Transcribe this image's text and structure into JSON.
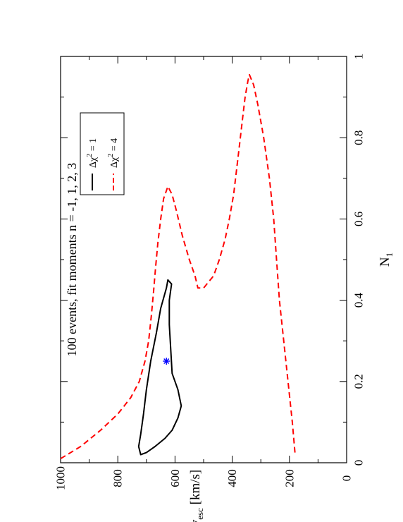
{
  "chart_data": {
    "type": "line",
    "orientation": "rotated 90 degrees counter-clockwise",
    "title": "100 events, fit moments n = -1, 1, 2, 3",
    "xlabel": "N",
    "xlabel_sub": "1",
    "ylabel": "v",
    "ylabel_sub": "esc",
    "ylabel_unit": "[km/s]",
    "xlim": [
      0,
      1
    ],
    "ylim": [
      0,
      1000
    ],
    "x_ticks": [
      "0",
      "0.2",
      "0.4",
      "0.6",
      "0.8",
      "1"
    ],
    "y_ticks": [
      "0",
      "200",
      "400",
      "600",
      "800",
      "1000"
    ],
    "grid": false,
    "legend_position": "top-right",
    "legend": [
      {
        "label": "Δχ",
        "sup": "2",
        "suffix": " = 1",
        "style": "solid",
        "color": "#000000"
      },
      {
        "label": "Δχ",
        "sup": "2",
        "suffix": " = 4",
        "style": "dashed",
        "color": "#ff0000"
      }
    ],
    "best_fit": {
      "x": 0.25,
      "y": 630,
      "marker": "*",
      "color": "#0000ff"
    },
    "series": [
      {
        "style": "solid",
        "color": "#000000",
        "closed": true,
        "points": [
          [
            0.45,
            625
          ],
          [
            0.43,
            630
          ],
          [
            0.38,
            650
          ],
          [
            0.32,
            665
          ],
          [
            0.25,
            685
          ],
          [
            0.18,
            700
          ],
          [
            0.12,
            710
          ],
          [
            0.07,
            720
          ],
          [
            0.04,
            727
          ],
          [
            0.02,
            720
          ],
          [
            0.025,
            700
          ],
          [
            0.04,
            670
          ],
          [
            0.06,
            635
          ],
          [
            0.08,
            610
          ],
          [
            0.11,
            590
          ],
          [
            0.14,
            578
          ],
          [
            0.18,
            590
          ],
          [
            0.22,
            610
          ],
          [
            0.28,
            615
          ],
          [
            0.34,
            620
          ],
          [
            0.4,
            620
          ],
          [
            0.44,
            612
          ],
          [
            0.45,
            625
          ]
        ]
      },
      {
        "style": "dashed",
        "color": "#ff0000",
        "points": [
          [
            0.01,
            1000
          ],
          [
            0.04,
            930
          ],
          [
            0.08,
            860
          ],
          [
            0.12,
            800
          ],
          [
            0.16,
            755
          ],
          [
            0.2,
            725
          ],
          [
            0.25,
            705
          ],
          [
            0.3,
            692
          ],
          [
            0.36,
            683
          ],
          [
            0.42,
            675
          ],
          [
            0.48,
            668
          ],
          [
            0.54,
            660
          ],
          [
            0.6,
            650
          ],
          [
            0.65,
            640
          ],
          [
            0.68,
            625
          ],
          [
            0.66,
            610
          ],
          [
            0.62,
            595
          ],
          [
            0.56,
            575
          ],
          [
            0.5,
            550
          ],
          [
            0.46,
            530
          ],
          [
            0.43,
            520
          ],
          [
            0.43,
            500
          ],
          [
            0.46,
            465
          ],
          [
            0.5,
            445
          ],
          [
            0.55,
            425
          ],
          [
            0.6,
            410
          ],
          [
            0.66,
            395
          ],
          [
            0.72,
            385
          ],
          [
            0.78,
            375
          ],
          [
            0.84,
            365
          ],
          [
            0.9,
            355
          ],
          [
            0.94,
            345
          ],
          [
            0.955,
            340
          ],
          [
            0.93,
            325
          ],
          [
            0.88,
            310
          ],
          [
            0.8,
            290
          ],
          [
            0.7,
            270
          ],
          [
            0.6,
            255
          ],
          [
            0.5,
            245
          ],
          [
            0.4,
            235
          ],
          [
            0.3,
            220
          ],
          [
            0.2,
            205
          ],
          [
            0.1,
            190
          ],
          [
            0.02,
            180
          ]
        ]
      }
    ]
  }
}
